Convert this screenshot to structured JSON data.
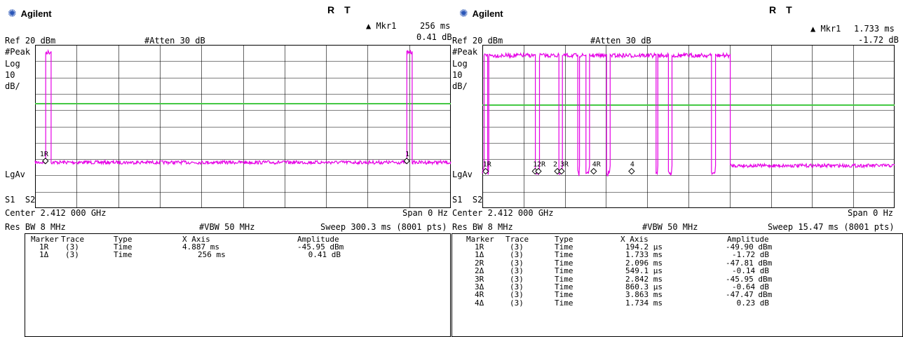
{
  "screens": [
    {
      "brand": "Agilent",
      "status_r": "R",
      "status_t": "T",
      "marker_readout": {
        "label": "▲ Mkr1",
        "value": "256 ms",
        "value2": "0.41 dB"
      },
      "ref_level": "Ref 20 dBm",
      "atten": "#Atten 30 dB",
      "left_labels": [
        "#Peak",
        "Log",
        "10",
        "dB/"
      ],
      "lgav": "LgAv",
      "s1s2": "S1  S2",
      "center": "Center 2.412 000 GHz",
      "span": "Span 0 Hz",
      "res_bw": "Res BW 8 MHz",
      "vbw": "#VBW 50 MHz",
      "sweep": "Sweep 300.3 ms (8001 pts)",
      "display_line_fraction": 0.36,
      "noise_floor_fraction": 0.72,
      "bursts": [
        [
          0.025,
          0.038
        ],
        [
          0.894,
          0.906
        ]
      ],
      "burst_top_fraction": 0.04,
      "trace_markers": [
        {
          "label": "1R",
          "at": 0.025,
          "label_dx": -8
        },
        {
          "label": "1",
          "at": 0.894,
          "label_dx": -2
        }
      ],
      "marker_table": {
        "headers": [
          "Marker",
          "Trace",
          "Type",
          "X Axis",
          "Amplitude"
        ],
        "rows": [
          [
            "1R",
            "(3)",
            "Time",
            "4.887 ms",
            "-45.95 dBm"
          ],
          [
            "1Δ",
            "(3)",
            "Time",
            "256 ms",
            "0.41 dB"
          ]
        ]
      }
    },
    {
      "brand": "Agilent",
      "status_r": "R",
      "status_t": "T",
      "marker_readout": {
        "label": "▲ Mkr1",
        "value": "1.733 ms",
        "value2": "-1.72 dB"
      },
      "ref_level": "Ref 20 dBm",
      "atten": "#Atten 30 dB",
      "left_labels": [
        "#Peak",
        "Log",
        "10",
        "dB/"
      ],
      "lgav": "LgAv",
      "s1s2": "S1  S2",
      "center": "Center 2.412 000 GHz",
      "span": "Span 0 Hz",
      "res_bw": "Res BW 8 MHz",
      "vbw": "#VBW 50 MHz",
      "sweep": "Sweep 15.47 ms (8001 pts)",
      "display_line_fraction": 0.37,
      "noise_floor_fraction": 0.74,
      "bursts": [
        [
          0.003,
          0.012
        ],
        [
          0.015,
          0.128
        ],
        [
          0.138,
          0.185
        ],
        [
          0.193,
          0.23
        ],
        [
          0.235,
          0.25
        ],
        [
          0.26,
          0.3
        ],
        [
          0.31,
          0.42
        ],
        [
          0.425,
          0.45
        ],
        [
          0.46,
          0.555
        ],
        [
          0.565,
          0.6
        ]
      ],
      "burst_top_fraction": 0.06,
      "trace_markers": [
        {
          "label": "1R",
          "at": 0.008,
          "label_dx": -4
        },
        {
          "label": "1",
          "at": 0.128,
          "label_dx": -3
        },
        {
          "label": "2R",
          "at": 0.136,
          "label_dx": -2
        },
        {
          "label": "2",
          "at": 0.182,
          "label_dx": -6
        },
        {
          "label": "3R",
          "at": 0.192,
          "label_dx": -2
        },
        {
          "label": "4R",
          "at": 0.27,
          "label_dx": -2
        },
        {
          "label": "4",
          "at": 0.362,
          "label_dx": -2
        }
      ],
      "marker_table": {
        "headers": [
          "Marker",
          "Trace",
          "Type",
          "X Axis",
          "Amplitude"
        ],
        "rows": [
          [
            "1R",
            "(3)",
            "Time",
            "194.2 µs",
            "-49.90 dBm"
          ],
          [
            "1Δ",
            "(3)",
            "Time",
            "1.733 ms",
            "-1.72 dB"
          ],
          [
            "2R",
            "(3)",
            "Time",
            "2.096 ms",
            "-47.81 dBm"
          ],
          [
            "2Δ",
            "(3)",
            "Time",
            "549.1 µs",
            "-0.14 dB"
          ],
          [
            "3R",
            "(3)",
            "Time",
            "2.842 ms",
            "-45.95 dBm"
          ],
          [
            "3Δ",
            "(3)",
            "Time",
            "860.3 µs",
            "-0.64 dB"
          ],
          [
            "4R",
            "(3)",
            "Time",
            "3.863 ms",
            "-47.47 dBm"
          ],
          [
            "4Δ",
            "(3)",
            "Time",
            "1.734 ms",
            "0.23 dB"
          ]
        ]
      }
    }
  ]
}
